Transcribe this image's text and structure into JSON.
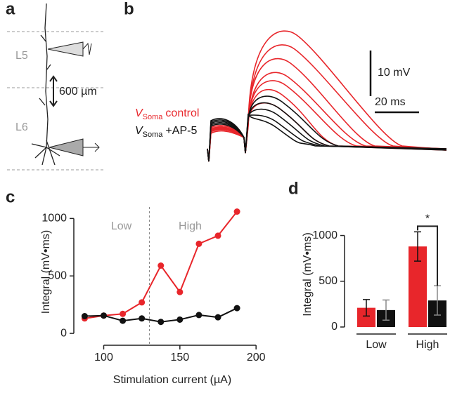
{
  "panel_labels": [
    "a",
    "b",
    "c",
    "d"
  ],
  "neuron_diagram": {
    "layers": [
      "L5",
      "L6"
    ],
    "distance": "600 µm"
  },
  "traces": {
    "legend": [
      {
        "symbol": "V",
        "subscript": "Soma",
        "label": "control",
        "color": "#e8262b"
      },
      {
        "symbol": "V",
        "subscript": "Soma",
        "label": "+AP-5",
        "color": "#111111"
      }
    ],
    "scale_bars": {
      "voltage": "10 mV",
      "time": "20 ms"
    }
  },
  "chart_data": [
    {
      "type": "line",
      "xlabel": "Stimulation current (µA)",
      "ylabel": "Integral (mV•ms)",
      "x": [
        87.5,
        100,
        112.5,
        125,
        137.5,
        150,
        162.5,
        175,
        187.5
      ],
      "series": [
        {
          "color": "#e8262b",
          "values": [
            130,
            155,
            170,
            270,
            590,
            360,
            780,
            850,
            1060
          ]
        },
        {
          "color": "#111111",
          "values": [
            150,
            155,
            110,
            130,
            100,
            120,
            160,
            140,
            220
          ]
        }
      ],
      "xlim": [
        85,
        205
      ],
      "xticks": [
        100,
        150,
        200
      ],
      "ylim": [
        -30,
        1100
      ],
      "yticks": [
        0,
        500,
        1000
      ],
      "vline": 130,
      "annotations": [
        "Low",
        "High"
      ]
    },
    {
      "type": "bar",
      "ylabel": "Integral (mV•ms)",
      "categories": [
        "Low",
        "High"
      ],
      "series": [
        {
          "color": "#e8262b",
          "values": [
            210,
            880
          ],
          "errors": [
            90,
            160
          ]
        },
        {
          "color": "#111111",
          "values": [
            185,
            290
          ],
          "errors": [
            110,
            160
          ]
        }
      ],
      "ylim": [
        0,
        1150
      ],
      "yticks": [
        0,
        500,
        1000
      ],
      "significance": "*"
    }
  ]
}
